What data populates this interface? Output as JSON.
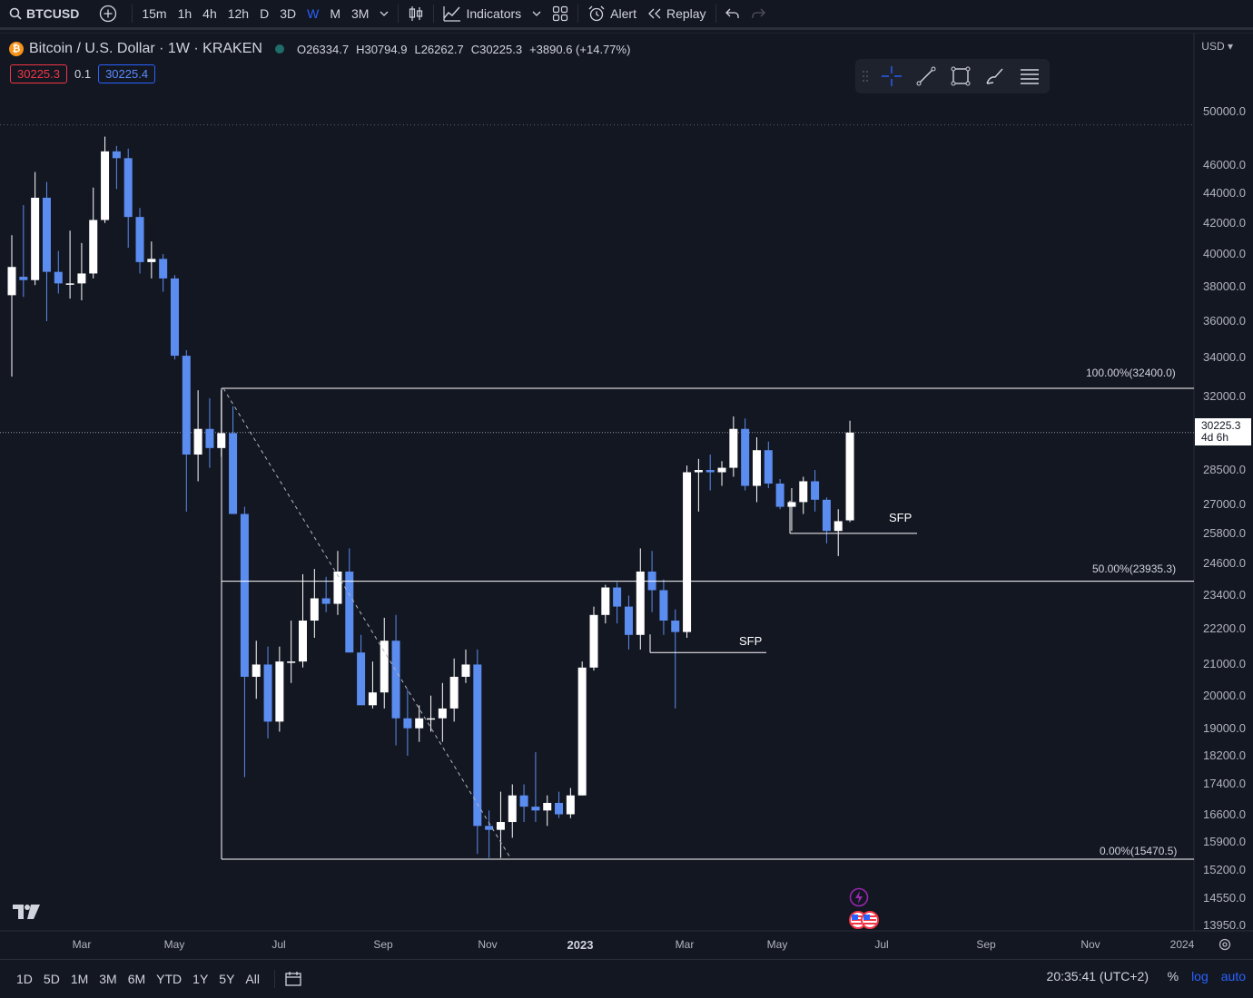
{
  "toolbar": {
    "symbol": "BTCUSD",
    "intervals": [
      "15m",
      "1h",
      "4h",
      "12h",
      "D",
      "3D",
      "W",
      "M",
      "3M"
    ],
    "active_interval": "W",
    "indicators_label": "Indicators",
    "alert_label": "Alert",
    "replay_label": "Replay"
  },
  "legend": {
    "title": "Bitcoin / U.S. Dollar · 1W · KRAKEN",
    "open_k": "O",
    "open": "26334.7",
    "high_k": "H",
    "high": "30794.9",
    "low_k": "L",
    "low": "26262.7",
    "close_k": "C",
    "close": "30225.3",
    "change": "+3890.6 (+14.77%)",
    "sell_price": "30225.3",
    "spread": "0.1",
    "buy_price": "30225.4"
  },
  "price_axis": {
    "currency": "USD",
    "labels": [
      "50000.0",
      "46000.0",
      "44000.0",
      "42000.0",
      "40000.0",
      "38000.0",
      "36000.0",
      "34000.0",
      "32000.0",
      "28500.0",
      "27000.0",
      "25800.0",
      "24600.0",
      "23400.0",
      "22200.0",
      "21000.0",
      "20000.0",
      "19000.0",
      "18200.0",
      "17400.0",
      "16600.0",
      "15900.0",
      "15200.0",
      "14550.0",
      "13950.0"
    ],
    "last_price": "30225.3",
    "countdown": "4d 6h"
  },
  "time_axis": {
    "labels": [
      "Mar",
      "May",
      "Jul",
      "Sep",
      "Nov",
      "2023",
      "Mar",
      "May",
      "Jul",
      "Sep",
      "Nov",
      "2024"
    ]
  },
  "annotations": {
    "fib_100": "100.00%(32400.0)",
    "fib_50": "50.00%(23935.3)",
    "fib_0": "0.00%(15470.5)",
    "sfp_1": "SFP",
    "sfp_2": "SFP"
  },
  "bottombar": {
    "ranges": [
      "1D",
      "5D",
      "1M",
      "3M",
      "6M",
      "YTD",
      "1Y",
      "5Y",
      "All"
    ],
    "clock": "20:35:41 (UTC+2)",
    "pct": "%",
    "log": "log",
    "auto": "auto"
  },
  "chart_data": {
    "type": "candlestick",
    "symbol": "BTCUSD",
    "interval": "1W",
    "scale": "log",
    "colors": {
      "up": "#ffffff",
      "down": "#5b8cf0",
      "background": "#131722"
    },
    "candles": [
      {
        "o": 37500,
        "h": 41200,
        "l": 33000,
        "c": 39200
      },
      {
        "o": 38600,
        "h": 43200,
        "l": 37400,
        "c": 38400
      },
      {
        "o": 38400,
        "h": 45500,
        "l": 38100,
        "c": 43700
      },
      {
        "o": 43700,
        "h": 44800,
        "l": 36000,
        "c": 38900
      },
      {
        "o": 38900,
        "h": 40200,
        "l": 37600,
        "c": 38200
      },
      {
        "o": 38200,
        "h": 41500,
        "l": 37300,
        "c": 38200
      },
      {
        "o": 38200,
        "h": 40700,
        "l": 37200,
        "c": 38800
      },
      {
        "o": 38800,
        "h": 44400,
        "l": 38500,
        "c": 42200
      },
      {
        "o": 42200,
        "h": 48100,
        "l": 42000,
        "c": 47000
      },
      {
        "o": 47000,
        "h": 47400,
        "l": 44300,
        "c": 46500
      },
      {
        "o": 46500,
        "h": 47200,
        "l": 40400,
        "c": 42400
      },
      {
        "o": 42400,
        "h": 43000,
        "l": 38800,
        "c": 39500
      },
      {
        "o": 39500,
        "h": 40800,
        "l": 38500,
        "c": 39700
      },
      {
        "o": 39700,
        "h": 40000,
        "l": 37700,
        "c": 38500
      },
      {
        "o": 38500,
        "h": 38700,
        "l": 33900,
        "c": 34100
      },
      {
        "o": 34100,
        "h": 34400,
        "l": 26700,
        "c": 29200
      },
      {
        "o": 29200,
        "h": 32300,
        "l": 28000,
        "c": 30400
      },
      {
        "o": 30400,
        "h": 31900,
        "l": 28600,
        "c": 29500
      },
      {
        "o": 29500,
        "h": 32300,
        "l": 29100,
        "c": 30200
      },
      {
        "o": 30200,
        "h": 31500,
        "l": 26600,
        "c": 26600
      },
      {
        "o": 26600,
        "h": 26900,
        "l": 17600,
        "c": 20600
      },
      {
        "o": 20600,
        "h": 21800,
        "l": 19900,
        "c": 21000
      },
      {
        "o": 21000,
        "h": 21600,
        "l": 18700,
        "c": 19200
      },
      {
        "o": 19200,
        "h": 21600,
        "l": 18900,
        "c": 21100
      },
      {
        "o": 21100,
        "h": 22500,
        "l": 20400,
        "c": 21100
      },
      {
        "o": 21100,
        "h": 24200,
        "l": 20900,
        "c": 22500
      },
      {
        "o": 22500,
        "h": 24400,
        "l": 21900,
        "c": 23300
      },
      {
        "o": 23300,
        "h": 24100,
        "l": 22800,
        "c": 23100
      },
      {
        "o": 23100,
        "h": 25100,
        "l": 22700,
        "c": 24300
      },
      {
        "o": 24300,
        "h": 25200,
        "l": 21600,
        "c": 21400
      },
      {
        "o": 21400,
        "h": 22000,
        "l": 19800,
        "c": 19700
      },
      {
        "o": 19700,
        "h": 21100,
        "l": 19600,
        "c": 20100
      },
      {
        "o": 20100,
        "h": 22600,
        "l": 19600,
        "c": 21800
      },
      {
        "o": 21800,
        "h": 22700,
        "l": 18500,
        "c": 19300
      },
      {
        "o": 19300,
        "h": 20200,
        "l": 18200,
        "c": 19000
      },
      {
        "o": 19000,
        "h": 19700,
        "l": 18600,
        "c": 19300
      },
      {
        "o": 19300,
        "h": 20000,
        "l": 18900,
        "c": 19300
      },
      {
        "o": 19300,
        "h": 20400,
        "l": 18600,
        "c": 19600
      },
      {
        "o": 19600,
        "h": 21200,
        "l": 19200,
        "c": 20600
      },
      {
        "o": 20600,
        "h": 21500,
        "l": 20400,
        "c": 21000
      },
      {
        "o": 21000,
        "h": 21500,
        "l": 15600,
        "c": 16300
      },
      {
        "o": 16300,
        "h": 16700,
        "l": 15500,
        "c": 16200
      },
      {
        "o": 16200,
        "h": 17200,
        "l": 15500,
        "c": 16400
      },
      {
        "o": 16400,
        "h": 17400,
        "l": 16000,
        "c": 17100
      },
      {
        "o": 17100,
        "h": 17400,
        "l": 16400,
        "c": 16800
      },
      {
        "o": 16800,
        "h": 18300,
        "l": 16400,
        "c": 16700
      },
      {
        "o": 16700,
        "h": 17100,
        "l": 16300,
        "c": 16900
      },
      {
        "o": 16900,
        "h": 17200,
        "l": 16500,
        "c": 16600
      },
      {
        "o": 16600,
        "h": 17300,
        "l": 16500,
        "c": 17100
      },
      {
        "o": 17100,
        "h": 21100,
        "l": 17100,
        "c": 20900
      },
      {
        "o": 20900,
        "h": 23000,
        "l": 20800,
        "c": 22700
      },
      {
        "o": 22700,
        "h": 23800,
        "l": 22400,
        "c": 23700
      },
      {
        "o": 23700,
        "h": 23900,
        "l": 22400,
        "c": 23000
      },
      {
        "o": 23000,
        "h": 23400,
        "l": 21500,
        "c": 22000
      },
      {
        "o": 22000,
        "h": 25200,
        "l": 21500,
        "c": 24300
      },
      {
        "o": 24300,
        "h": 25100,
        "l": 22800,
        "c": 23600
      },
      {
        "o": 23600,
        "h": 24000,
        "l": 22000,
        "c": 22500
      },
      {
        "o": 22500,
        "h": 22900,
        "l": 19600,
        "c": 22100
      },
      {
        "o": 22100,
        "h": 28700,
        "l": 21900,
        "c": 28400
      },
      {
        "o": 28400,
        "h": 29000,
        "l": 26700,
        "c": 28500
      },
      {
        "o": 28500,
        "h": 29200,
        "l": 27600,
        "c": 28400
      },
      {
        "o": 28400,
        "h": 28900,
        "l": 27800,
        "c": 28600
      },
      {
        "o": 28600,
        "h": 31000,
        "l": 28200,
        "c": 30400
      },
      {
        "o": 30400,
        "h": 30900,
        "l": 27600,
        "c": 27800
      },
      {
        "o": 27800,
        "h": 30000,
        "l": 27100,
        "c": 29400
      },
      {
        "o": 29400,
        "h": 29800,
        "l": 27700,
        "c": 27900
      },
      {
        "o": 27900,
        "h": 28100,
        "l": 26800,
        "c": 26900
      },
      {
        "o": 26900,
        "h": 27700,
        "l": 25900,
        "c": 27100
      },
      {
        "o": 27100,
        "h": 28200,
        "l": 26600,
        "c": 28000
      },
      {
        "o": 28000,
        "h": 28500,
        "l": 26700,
        "c": 27200
      },
      {
        "o": 27200,
        "h": 27300,
        "l": 25400,
        "c": 25900
      },
      {
        "o": 25900,
        "h": 26800,
        "l": 24900,
        "c": 26300
      },
      {
        "o": 26334.7,
        "h": 30794.9,
        "l": 26262.7,
        "c": 30225.3
      }
    ],
    "fib": [
      {
        "level": "100.00%",
        "price": 32400.0
      },
      {
        "level": "50.00%",
        "price": 23935.3
      },
      {
        "level": "0.00%",
        "price": 15470.5
      }
    ],
    "sfp_levels": [
      {
        "label": "SFP",
        "price": 25800
      },
      {
        "label": "SFP",
        "price": 21400
      }
    ],
    "hlines": [
      49000,
      30225.3
    ]
  }
}
